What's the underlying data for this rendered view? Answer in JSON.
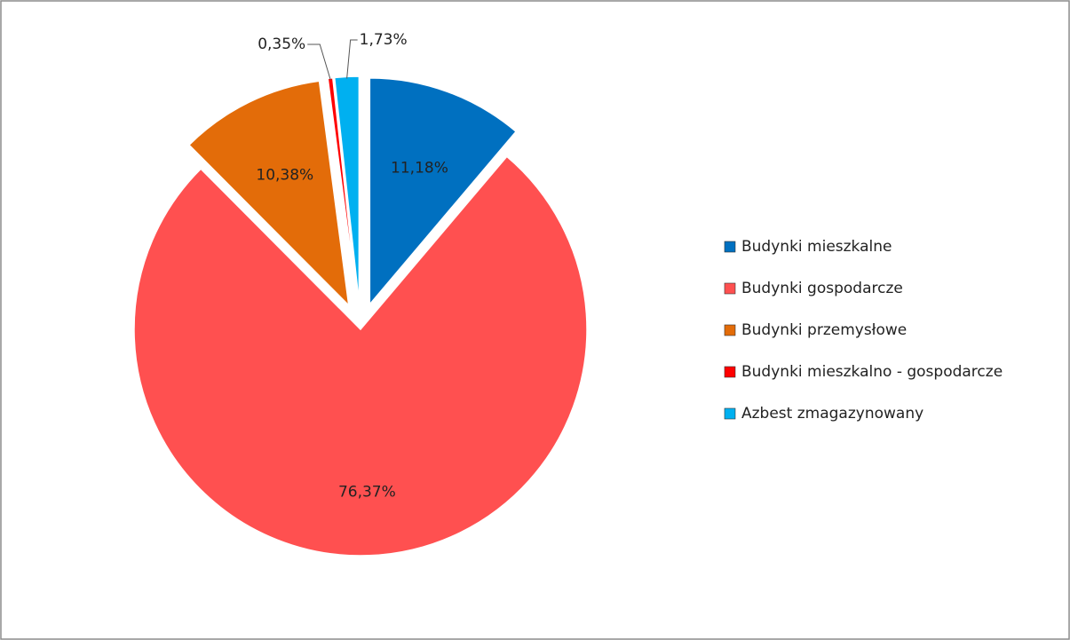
{
  "chart_data": {
    "type": "pie",
    "categories": [
      "Budynki mieszkalne",
      "Budynki gospodarcze",
      "Budynki przemysłowe",
      "Budynki mieszkalno - gospodarcze",
      "Azbest zmagazynowany"
    ],
    "values": [
      11.18,
      76.37,
      10.38,
      0.35,
      1.73
    ],
    "value_labels": [
      "11,18%",
      "76,37%",
      "10,38%",
      "0,35%",
      "1,73%"
    ],
    "colors": [
      "#0070c0",
      "#ff5050",
      "#e36c09",
      "#ff0000",
      "#00b0f0"
    ],
    "legend": "right"
  }
}
